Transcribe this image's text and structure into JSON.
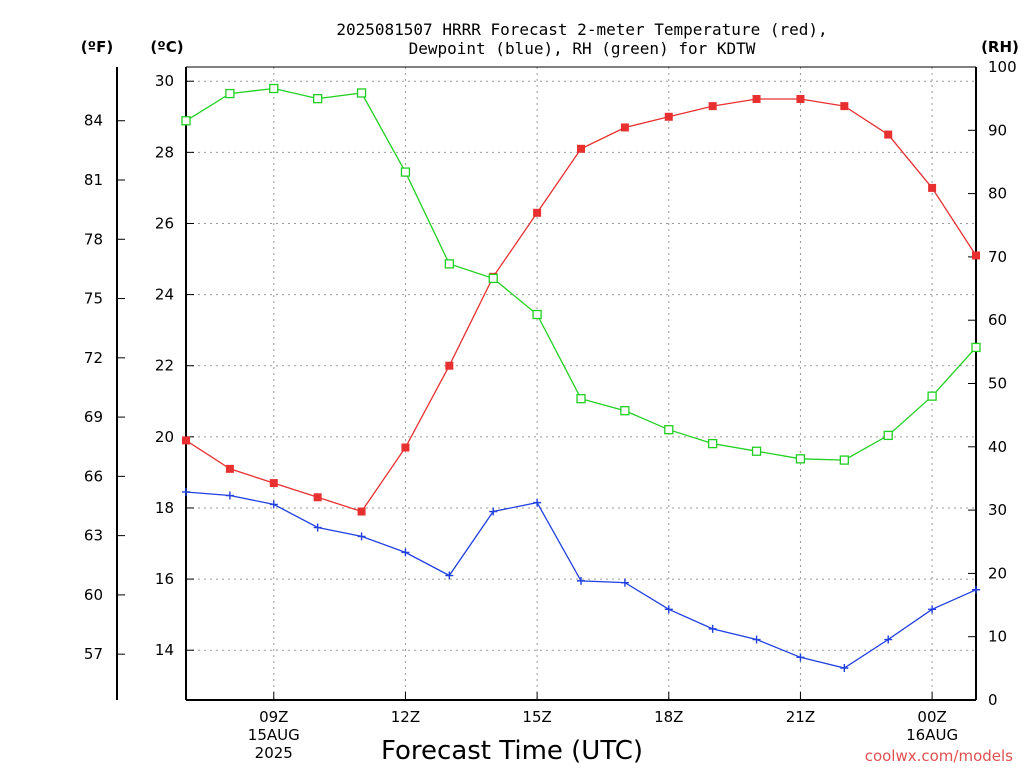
{
  "chart_data": {
    "type": "line",
    "title_lines": [
      "2025081507 HRRR Forecast 2-meter Temperature (red),",
      "Dewpoint (blue), RH (green) for KDTW"
    ],
    "xlabel": "Forecast Time (UTC)",
    "credit": "coolwx.com/models",
    "units": {
      "left_f": "(ºF)",
      "left_c": "(ºC)",
      "right_rh": "(RH)"
    },
    "x_hours": [
      7,
      8,
      9,
      10,
      11,
      12,
      13,
      14,
      15,
      16,
      17,
      18,
      19,
      20,
      21,
      22,
      23,
      24,
      25
    ],
    "xlim": [
      7,
      25
    ],
    "x_ticks": [
      {
        "hour": 9,
        "lines": [
          "09Z",
          "15AUG",
          "2025"
        ]
      },
      {
        "hour": 12,
        "lines": [
          "12Z"
        ]
      },
      {
        "hour": 15,
        "lines": [
          "15Z"
        ]
      },
      {
        "hour": 18,
        "lines": [
          "18Z"
        ]
      },
      {
        "hour": 21,
        "lines": [
          "21Z"
        ]
      },
      {
        "hour": 24,
        "lines": [
          "00Z",
          "16AUG"
        ]
      }
    ],
    "celsius_axis": {
      "ylim": [
        12.6,
        30.4
      ],
      "ticks": [
        14,
        16,
        18,
        20,
        22,
        24,
        26,
        28,
        30
      ]
    },
    "fahrenheit_axis": {
      "ticks": [
        57,
        60,
        63,
        66,
        69,
        72,
        75,
        78,
        81,
        84
      ]
    },
    "rh_axis": {
      "ylim": [
        0,
        100
      ],
      "ticks": [
        0,
        10,
        20,
        30,
        40,
        50,
        60,
        70,
        80,
        90,
        100
      ]
    },
    "series": [
      {
        "name": "Temperature",
        "axis": "celsius",
        "color": "#e83030",
        "marker": "filled-square",
        "values": [
          19.9,
          19.1,
          18.7,
          18.3,
          17.9,
          19.7,
          22.0,
          24.5,
          26.3,
          28.1,
          28.7,
          29.0,
          29.3,
          29.5,
          29.5,
          29.3,
          28.5,
          27.0,
          25.1
        ]
      },
      {
        "name": "Dewpoint",
        "axis": "celsius",
        "color": "#2040e0",
        "marker": "plus",
        "values": [
          18.45,
          18.35,
          18.1,
          17.45,
          17.2,
          16.75,
          16.1,
          17.9,
          18.15,
          15.95,
          15.9,
          15.15,
          14.6,
          14.3,
          13.8,
          13.5,
          14.3,
          15.15,
          15.7
        ]
      },
      {
        "name": "RH",
        "axis": "rh",
        "color": "#20d020",
        "marker": "open-square",
        "values": [
          91.5,
          95.8,
          96.6,
          95.0,
          95.9,
          83.4,
          68.9,
          66.6,
          60.9,
          47.6,
          45.7,
          42.7,
          40.5,
          39.3,
          38.1,
          37.9,
          41.8,
          48.0,
          55.7
        ]
      }
    ]
  }
}
